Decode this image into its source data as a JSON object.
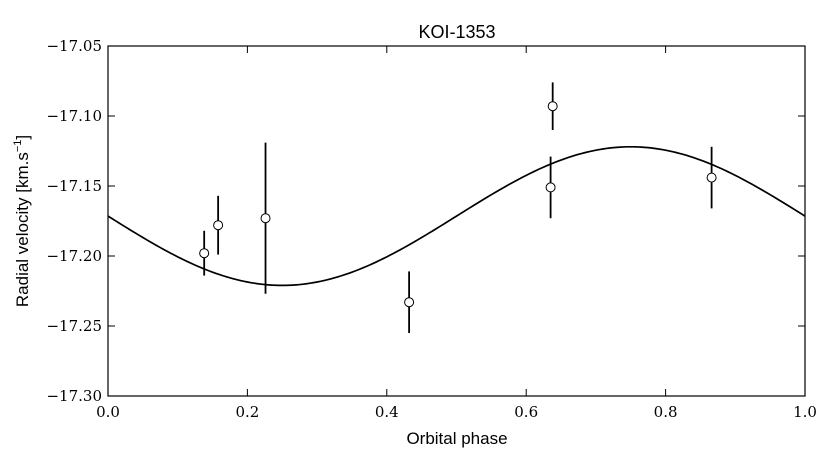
{
  "chart_data": {
    "type": "scatter",
    "title": "KOI-1353",
    "xlabel": "Orbital phase",
    "ylabel": "Radial velocity [km.s",
    "ylabel_sup": "−1",
    "ylabel_close": "]",
    "xlim": [
      0.0,
      1.0
    ],
    "ylim": [
      -17.3,
      -17.05
    ],
    "xticks": [
      {
        "value": 0.0,
        "label": "0.0"
      },
      {
        "value": 0.2,
        "label": "0.2"
      },
      {
        "value": 0.4,
        "label": "0.4"
      },
      {
        "value": 0.6,
        "label": "0.6"
      },
      {
        "value": 0.8,
        "label": "0.8"
      },
      {
        "value": 1.0,
        "label": "1.0"
      }
    ],
    "yticks": [
      {
        "value": -17.3,
        "label": "−17.30"
      },
      {
        "value": -17.25,
        "label": "−17.25"
      },
      {
        "value": -17.2,
        "label": "−17.20"
      },
      {
        "value": -17.15,
        "label": "−17.15"
      },
      {
        "value": -17.1,
        "label": "−17.10"
      },
      {
        "value": -17.05,
        "label": "−17.05"
      }
    ],
    "points": [
      {
        "x": 0.138,
        "y": -17.198,
        "yerr": 0.016
      },
      {
        "x": 0.158,
        "y": -17.178,
        "yerr": 0.021
      },
      {
        "x": 0.226,
        "y": -17.173,
        "yerr": 0.054
      },
      {
        "x": 0.432,
        "y": -17.233,
        "yerr": 0.022
      },
      {
        "x": 0.635,
        "y": -17.151,
        "yerr": 0.022
      },
      {
        "x": 0.638,
        "y": -17.093,
        "yerr": 0.017
      },
      {
        "x": 0.866,
        "y": -17.144,
        "yerr": 0.022
      }
    ],
    "model_curve": {
      "type": "sinusoid",
      "offset": -17.1715,
      "amplitude": 0.0495,
      "period": 1.0,
      "min_phase": 0.25
    },
    "grid": false,
    "legend": "none"
  }
}
